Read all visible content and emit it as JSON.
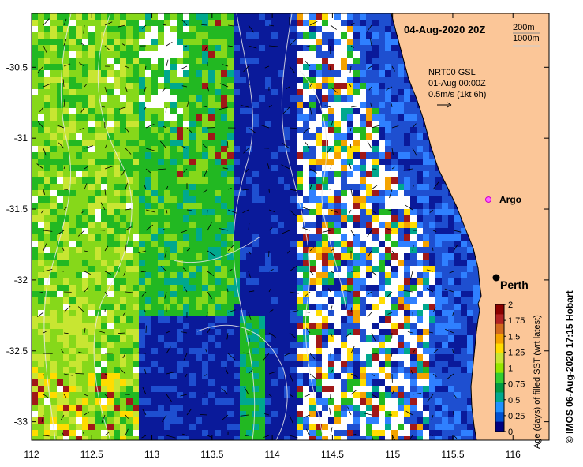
{
  "title": "04-Aug-2020 20Z",
  "depth_legend": {
    "line1": "200m",
    "line2": "1000m"
  },
  "current_info": {
    "line1": "NRT00 GSL",
    "line2": "01-Aug 00:00Z",
    "line3": "0.5m/s (1kt 6h)"
  },
  "places": [
    {
      "name": "Perth",
      "lon": 115.86,
      "lat": -31.95,
      "marker": "black-dot"
    },
    {
      "name": "Argo",
      "lon": 115.82,
      "lat": -31.45,
      "marker": "magenta-circle"
    }
  ],
  "colorbar": {
    "label": "Age (days) of filled SST (wrt latest)",
    "min": 0,
    "max": 2,
    "ticks": [
      "2",
      "1.75",
      "1.5",
      "1.25",
      "1",
      "0.75",
      "0.5",
      "0.25",
      "0"
    ],
    "colors": [
      "#8b0000",
      "#b22222",
      "#d2691e",
      "#f4a300",
      "#ffdc00",
      "#c8e632",
      "#96e600",
      "#32cd32",
      "#009a44",
      "#00a88e",
      "#1e90ff",
      "#0050d0",
      "#000080"
    ]
  },
  "credit": "© IMOS 06-Aug-2020 17:15 Hobart",
  "chart_data": {
    "type": "heatmap",
    "title": "04-Aug-2020 20Z",
    "xlabel": "",
    "ylabel": "",
    "xlim": [
      112,
      116.3
    ],
    "ylim": [
      -33.13,
      -30.12
    ],
    "x_ticks": [
      "112",
      "112.5",
      "113",
      "113.5",
      "114",
      "114.5",
      "115",
      "115.5",
      "116"
    ],
    "y_ticks": [
      "-30.5",
      "-31",
      "-31.5",
      "-32",
      "-32.5",
      "-33"
    ],
    "value_label": "Age (days) of filled SST (wrt latest)",
    "value_range": [
      0,
      2
    ]
  }
}
